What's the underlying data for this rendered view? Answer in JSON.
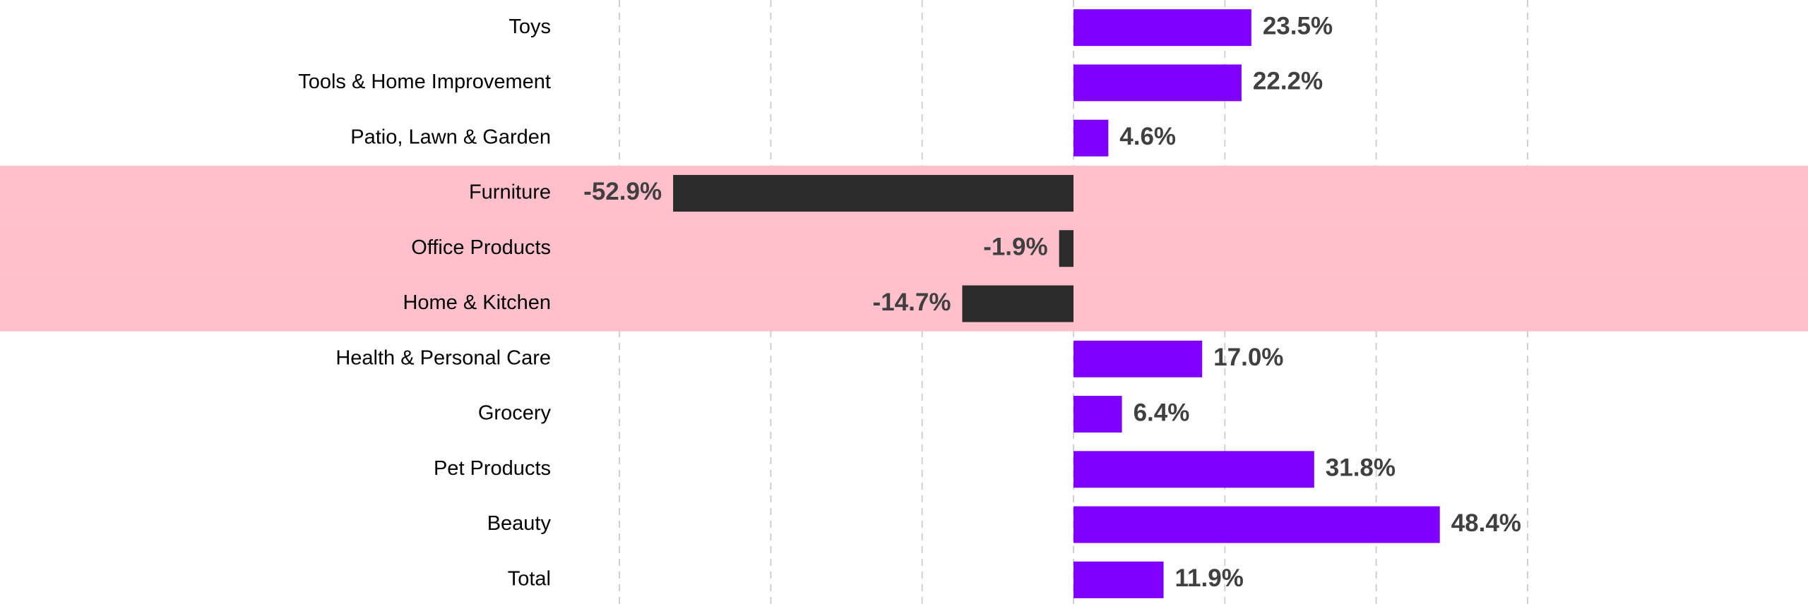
{
  "chart_data": {
    "type": "barh",
    "categories": [
      "Toys",
      "Tools & Home Improvement",
      "Patio, Lawn & Garden",
      "Furniture",
      "Office Products",
      "Home & Kitchen",
      "Health & Personal Care",
      "Grocery",
      "Pet Products",
      "Beauty",
      "Total"
    ],
    "values": [
      23.5,
      22.2,
      4.6,
      -52.9,
      -1.9,
      -14.7,
      17.0,
      6.4,
      31.8,
      48.4,
      11.9
    ],
    "value_labels": [
      "23.5%",
      "22.2%",
      "4.6%",
      "-52.9%",
      "-1.9%",
      "-14.7%",
      "17.0%",
      "6.4%",
      "31.8%",
      "48.4%",
      "11.9%"
    ],
    "positive_color": "#7f00ff",
    "negative_color": "#2b2b2b",
    "highlight": [
      3,
      4,
      5
    ],
    "highlight_color": "#ffc0cb",
    "xlim": [
      -60,
      60
    ],
    "xticks": [
      -60,
      -40,
      -20,
      0,
      20,
      40,
      60
    ],
    "grid": true
  }
}
